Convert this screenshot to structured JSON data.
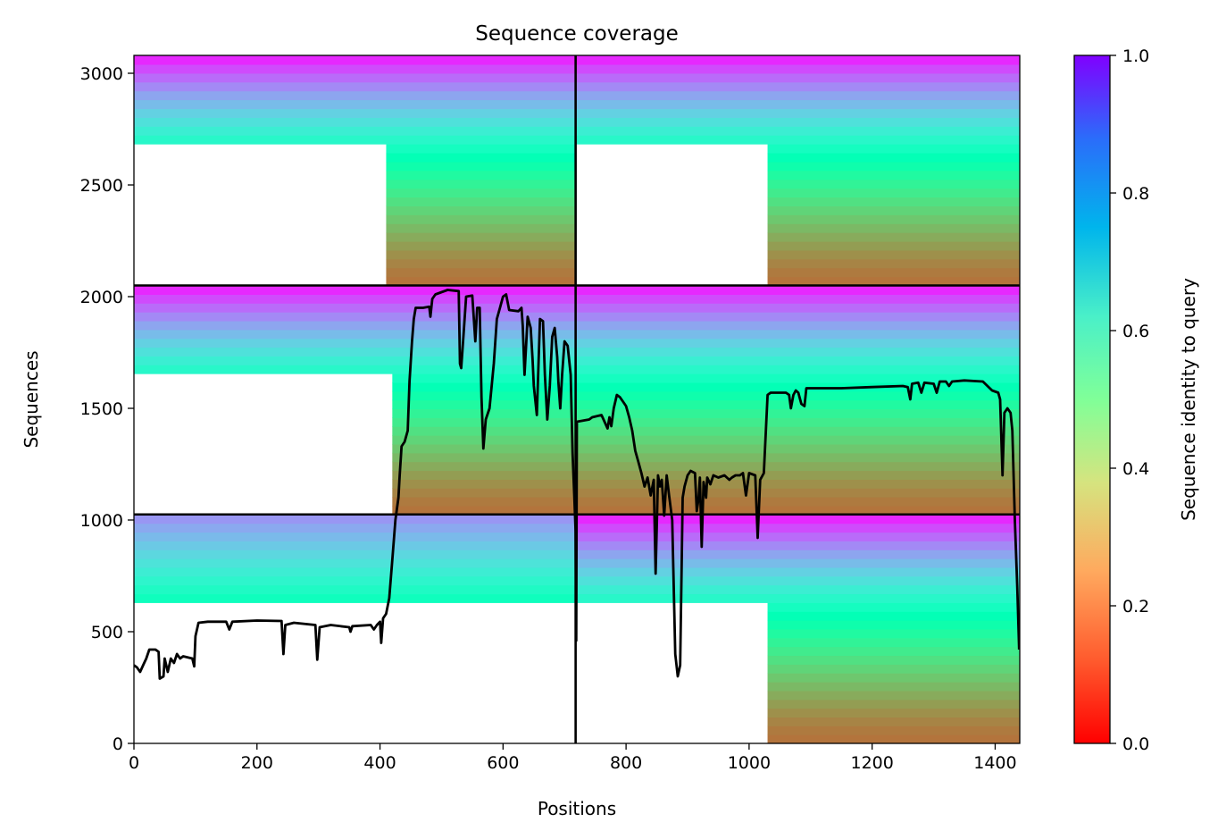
{
  "chart_data": {
    "type": "heatmap",
    "title": "Sequence coverage",
    "xlabel": "Positions",
    "ylabel": "Sequences",
    "xlim": [
      0,
      1440
    ],
    "ylim": [
      0,
      3080
    ],
    "xticks": [
      0,
      200,
      400,
      600,
      800,
      1000,
      1200,
      1400
    ],
    "yticks": [
      0,
      500,
      1000,
      1500,
      2000,
      2500,
      3000
    ],
    "colorbar": {
      "label": "Sequence identity to query",
      "range": [
        0,
        1
      ],
      "ticks": [
        "0.0",
        "0.2",
        "0.4",
        "0.6",
        "0.8",
        "1.0"
      ],
      "colormap": "rainbow_r"
    },
    "grid": false,
    "block_dividers": {
      "x": [
        718
      ],
      "y": [
        1025,
        2050
      ]
    },
    "blocks": [
      {
        "x": [
          0,
          718
        ],
        "y": [
          2050,
          3080
        ],
        "fill_start_x": 410
      },
      {
        "x": [
          718,
          1440
        ],
        "y": [
          2050,
          3080
        ],
        "fill_start_x": 1030
      },
      {
        "x": [
          0,
          718
        ],
        "y": [
          1025,
          2050
        ],
        "fill_start_x": 420
      },
      {
        "x": [
          718,
          1440
        ],
        "y": [
          1025,
          2050
        ],
        "fill_start_x": 718
      },
      {
        "x": [
          0,
          718
        ],
        "y": [
          0,
          1025
        ],
        "fill_start_x": 718
      },
      {
        "x": [
          718,
          1440
        ],
        "y": [
          0,
          1025
        ],
        "fill_start_x": 1030
      }
    ],
    "coverage_line": {
      "color": "#000000",
      "points": [
        [
          0,
          350
        ],
        [
          5,
          340
        ],
        [
          10,
          320
        ],
        [
          15,
          350
        ],
        [
          20,
          380
        ],
        [
          25,
          420
        ],
        [
          35,
          420
        ],
        [
          40,
          410
        ],
        [
          42,
          290
        ],
        [
          48,
          300
        ],
        [
          50,
          380
        ],
        [
          55,
          320
        ],
        [
          60,
          380
        ],
        [
          65,
          360
        ],
        [
          70,
          400
        ],
        [
          75,
          380
        ],
        [
          80,
          390
        ],
        [
          95,
          380
        ],
        [
          98,
          345
        ],
        [
          100,
          480
        ],
        [
          105,
          540
        ],
        [
          120,
          545
        ],
        [
          150,
          545
        ],
        [
          155,
          510
        ],
        [
          160,
          545
        ],
        [
          200,
          550
        ],
        [
          240,
          548
        ],
        [
          243,
          400
        ],
        [
          246,
          530
        ],
        [
          260,
          540
        ],
        [
          295,
          530
        ],
        [
          298,
          375
        ],
        [
          302,
          520
        ],
        [
          320,
          530
        ],
        [
          350,
          520
        ],
        [
          352,
          500
        ],
        [
          355,
          525
        ],
        [
          385,
          530
        ],
        [
          390,
          510
        ],
        [
          395,
          530
        ],
        [
          400,
          545
        ],
        [
          402,
          450
        ],
        [
          405,
          560
        ],
        [
          410,
          580
        ],
        [
          415,
          650
        ],
        [
          420,
          820
        ],
        [
          425,
          1000
        ],
        [
          430,
          1100
        ],
        [
          432,
          1200
        ],
        [
          435,
          1330
        ],
        [
          440,
          1350
        ],
        [
          445,
          1400
        ],
        [
          448,
          1620
        ],
        [
          452,
          1800
        ],
        [
          455,
          1900
        ],
        [
          458,
          1950
        ],
        [
          470,
          1950
        ],
        [
          480,
          1955
        ],
        [
          482,
          1910
        ],
        [
          485,
          1990
        ],
        [
          490,
          2010
        ],
        [
          500,
          2020
        ],
        [
          510,
          2030
        ],
        [
          528,
          2025
        ],
        [
          530,
          1700
        ],
        [
          532,
          1680
        ],
        [
          535,
          1800
        ],
        [
          540,
          2000
        ],
        [
          550,
          2005
        ],
        [
          555,
          1800
        ],
        [
          558,
          1950
        ],
        [
          562,
          1950
        ],
        [
          565,
          1550
        ],
        [
          568,
          1320
        ],
        [
          572,
          1450
        ],
        [
          578,
          1500
        ],
        [
          585,
          1700
        ],
        [
          590,
          1900
        ],
        [
          595,
          1950
        ],
        [
          600,
          2000
        ],
        [
          605,
          2010
        ],
        [
          610,
          1940
        ],
        [
          625,
          1935
        ],
        [
          630,
          1950
        ],
        [
          632,
          1870
        ],
        [
          635,
          1650
        ],
        [
          640,
          1910
        ],
        [
          645,
          1860
        ],
        [
          648,
          1720
        ],
        [
          650,
          1600
        ],
        [
          655,
          1470
        ],
        [
          660,
          1900
        ],
        [
          665,
          1890
        ],
        [
          668,
          1650
        ],
        [
          672,
          1450
        ],
        [
          676,
          1600
        ],
        [
          680,
          1820
        ],
        [
          684,
          1860
        ],
        [
          688,
          1730
        ],
        [
          690,
          1620
        ],
        [
          693,
          1500
        ],
        [
          696,
          1650
        ],
        [
          700,
          1800
        ],
        [
          705,
          1780
        ],
        [
          710,
          1650
        ],
        [
          713,
          1300
        ],
        [
          716,
          1100
        ],
        [
          718,
          950
        ],
        [
          719,
          460
        ],
        [
          720,
          1440
        ],
        [
          740,
          1450
        ],
        [
          745,
          1460
        ],
        [
          760,
          1470
        ],
        [
          765,
          1440
        ],
        [
          770,
          1410
        ],
        [
          773,
          1460
        ],
        [
          776,
          1420
        ],
        [
          780,
          1500
        ],
        [
          785,
          1560
        ],
        [
          790,
          1550
        ],
        [
          795,
          1530
        ],
        [
          800,
          1510
        ],
        [
          805,
          1460
        ],
        [
          810,
          1400
        ],
        [
          815,
          1310
        ],
        [
          820,
          1260
        ],
        [
          825,
          1210
        ],
        [
          830,
          1150
        ],
        [
          835,
          1190
        ],
        [
          840,
          1110
        ],
        [
          845,
          1180
        ],
        [
          848,
          760
        ],
        [
          852,
          1200
        ],
        [
          855,
          1150
        ],
        [
          858,
          1180
        ],
        [
          862,
          1020
        ],
        [
          866,
          1200
        ],
        [
          870,
          1110
        ],
        [
          875,
          1000
        ],
        [
          880,
          400
        ],
        [
          884,
          300
        ],
        [
          888,
          350
        ],
        [
          892,
          1100
        ],
        [
          895,
          1150
        ],
        [
          900,
          1200
        ],
        [
          905,
          1220
        ],
        [
          912,
          1210
        ],
        [
          915,
          1040
        ],
        [
          918,
          1100
        ],
        [
          920,
          1190
        ],
        [
          923,
          880
        ],
        [
          926,
          1170
        ],
        [
          930,
          1100
        ],
        [
          932,
          1190
        ],
        [
          937,
          1160
        ],
        [
          942,
          1200
        ],
        [
          950,
          1190
        ],
        [
          960,
          1200
        ],
        [
          968,
          1180
        ],
        [
          972,
          1190
        ],
        [
          978,
          1200
        ],
        [
          985,
          1200
        ],
        [
          990,
          1210
        ],
        [
          995,
          1110
        ],
        [
          1000,
          1210
        ],
        [
          1010,
          1200
        ],
        [
          1014,
          920
        ],
        [
          1018,
          1180
        ],
        [
          1024,
          1210
        ],
        [
          1030,
          1560
        ],
        [
          1035,
          1570
        ],
        [
          1050,
          1570
        ],
        [
          1060,
          1570
        ],
        [
          1065,
          1560
        ],
        [
          1068,
          1500
        ],
        [
          1072,
          1560
        ],
        [
          1076,
          1580
        ],
        [
          1080,
          1570
        ],
        [
          1085,
          1520
        ],
        [
          1090,
          1510
        ],
        [
          1093,
          1590
        ],
        [
          1100,
          1590
        ],
        [
          1150,
          1590
        ],
        [
          1200,
          1595
        ],
        [
          1250,
          1600
        ],
        [
          1258,
          1595
        ],
        [
          1262,
          1540
        ],
        [
          1265,
          1610
        ],
        [
          1275,
          1615
        ],
        [
          1280,
          1570
        ],
        [
          1285,
          1615
        ],
        [
          1300,
          1610
        ],
        [
          1305,
          1570
        ],
        [
          1310,
          1620
        ],
        [
          1320,
          1620
        ],
        [
          1325,
          1600
        ],
        [
          1330,
          1620
        ],
        [
          1350,
          1625
        ],
        [
          1380,
          1620
        ],
        [
          1395,
          1580
        ],
        [
          1405,
          1570
        ],
        [
          1408,
          1540
        ],
        [
          1412,
          1200
        ],
        [
          1415,
          1480
        ],
        [
          1420,
          1500
        ],
        [
          1425,
          1480
        ],
        [
          1428,
          1400
        ],
        [
          1432,
          1000
        ],
        [
          1436,
          700
        ],
        [
          1439,
          420
        ]
      ]
    }
  }
}
